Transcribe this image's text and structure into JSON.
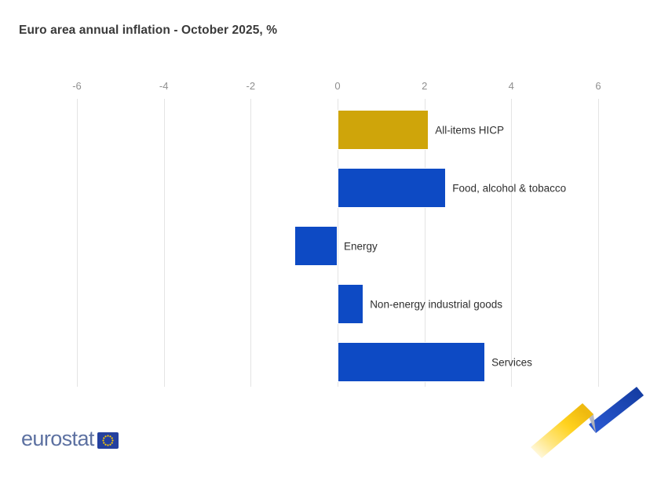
{
  "chart_data": {
    "type": "bar",
    "orientation": "horizontal",
    "title": "Euro area annual inflation - October 2025, %",
    "unit": "%",
    "categories": [
      "All-items HICP",
      "Food, alcohol & tobacco",
      "Energy",
      "Non-energy industrial goods",
      "Services"
    ],
    "values": [
      2.1,
      2.5,
      -1.0,
      0.6,
      3.4
    ],
    "bar_colors": [
      "#cfa50a",
      "#0d4ac4",
      "#0d4ac4",
      "#0d4ac4",
      "#0d4ac4"
    ],
    "xlabel": "",
    "ylabel": "",
    "axis": {
      "min": -6,
      "max": 6,
      "tick_labels": [
        "-6",
        "-4",
        "-2",
        "0",
        "2",
        "4",
        "6"
      ],
      "tick_values": [
        -6,
        -4,
        -2,
        0,
        2,
        4,
        6
      ]
    },
    "grid": true,
    "legend": "none"
  },
  "logo": {
    "text": "eurostat"
  },
  "colors": {
    "bar_blue": "#0d4ac4",
    "bar_gold": "#cfa50a",
    "gridline": "#e4e4e4",
    "axis_text": "#8f8f8f",
    "label_text": "#2f2f2f",
    "logo_text": "#5d71a1",
    "flag_blue": "#24409f",
    "flag_star": "#ffcc00"
  }
}
